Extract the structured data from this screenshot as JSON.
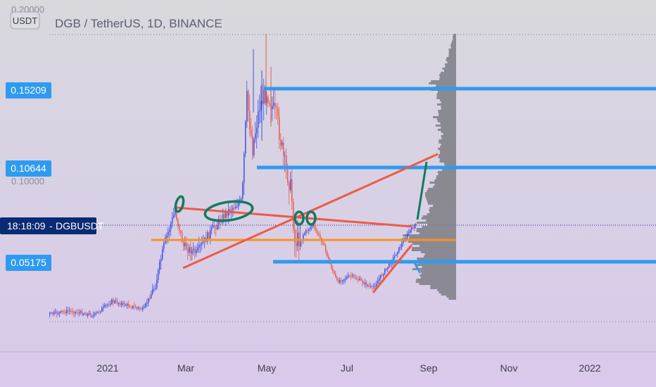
{
  "chart_data": {
    "type": "candlestick",
    "title": "DGB / TetherUS, 1D, BINANCE",
    "currency_label": "USDT",
    "x_tick_labels": [
      "2021",
      "Mar",
      "May",
      "Jul",
      "Sep",
      "Nov",
      "2022"
    ],
    "faint_y_labels": [
      "0.20000",
      "0.10000"
    ],
    "price_levels": [
      {
        "label": "0.15209",
        "value": 0.15209
      },
      {
        "label": "0.10644",
        "value": 0.10644
      },
      {
        "label": "0.05175",
        "value": 0.05175
      }
    ],
    "current_price_tag": {
      "time": "18:18:09",
      "symbol": "DGBUSDT"
    },
    "colors": {
      "up": "#3d52e0",
      "down": "#e85d4f",
      "level_line": "#2e9bf0",
      "trend_line": "#ec5b46",
      "support_line": "#f7931e",
      "marker": "#127a5e",
      "volume_profile": "#7c7c84",
      "symbol_tag": "#0a2a73"
    },
    "background": {
      "top": "#d8d8dd",
      "bottom": "#d9c9ec"
    }
  }
}
